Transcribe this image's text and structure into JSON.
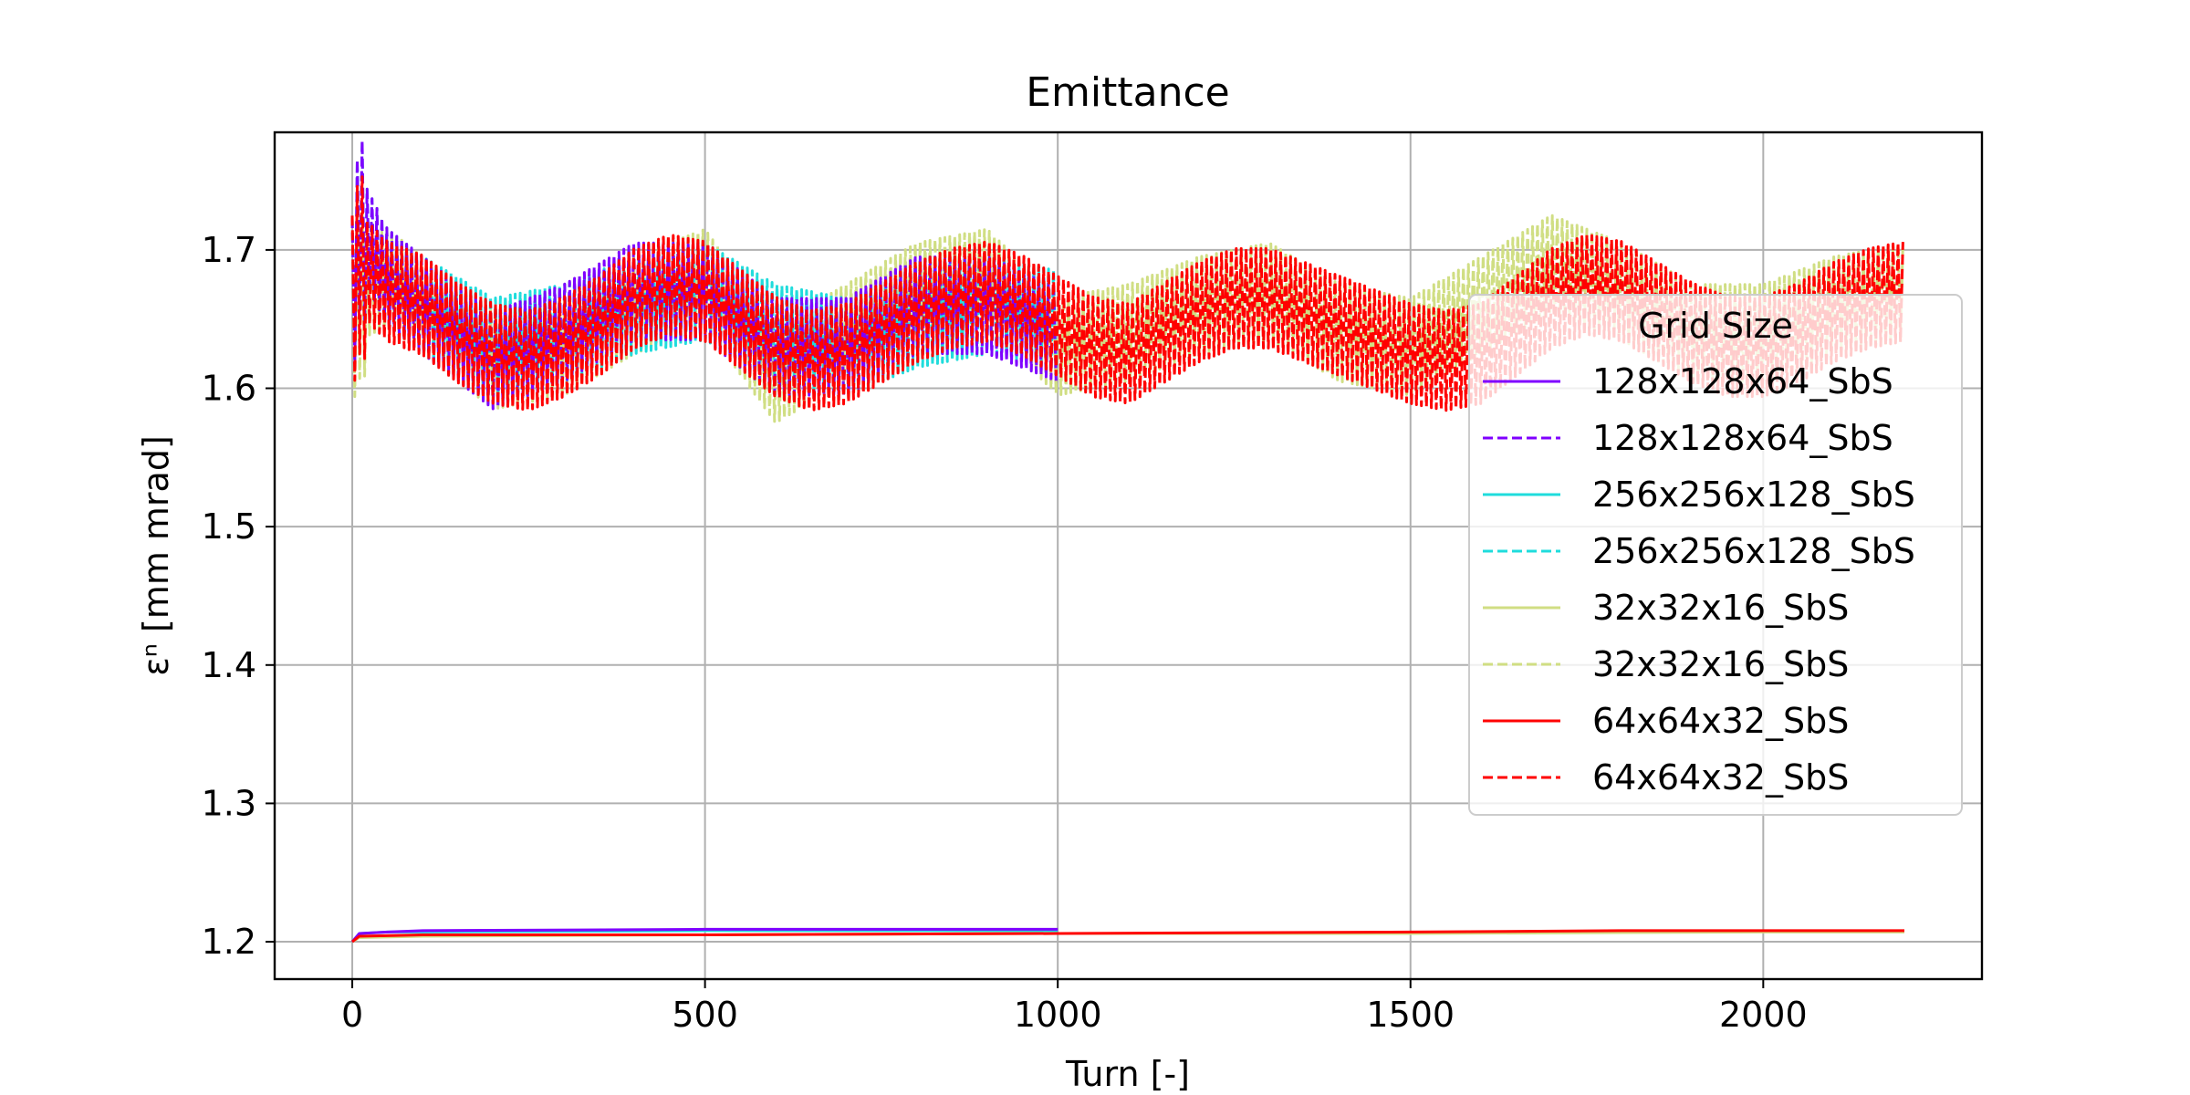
{
  "chart_data": {
    "type": "line",
    "title": "Emittance",
    "xlabel": "Turn [-]",
    "ylabel": "εⁿ [mm mrad]",
    "xlim": [
      -110,
      2310
    ],
    "ylim": [
      1.173,
      1.785
    ],
    "xticks": [
      0,
      500,
      1000,
      1500,
      2000
    ],
    "yticks": [
      1.2,
      1.3,
      1.4,
      1.5,
      1.6,
      1.7
    ],
    "grid": true,
    "legend": {
      "title": "Grid Size",
      "placement": "right"
    },
    "series": [
      {
        "name": "128x128x64_SbS",
        "color": "#7f00ff",
        "dash": "solid",
        "x": [
          0,
          10,
          50,
          100,
          500,
          1000
        ],
        "y": [
          1.2,
          1.206,
          1.207,
          1.208,
          1.209,
          1.209
        ]
      },
      {
        "name": "128x128x64_SbS",
        "color": "#7f00ff",
        "dash": "dashed",
        "oscillating": true,
        "x": [
          0,
          10,
          50,
          100,
          200,
          300,
          400,
          500,
          600,
          700,
          800,
          900,
          1000
        ],
        "y": [
          1.66,
          1.72,
          1.68,
          1.66,
          1.62,
          1.64,
          1.67,
          1.67,
          1.63,
          1.63,
          1.66,
          1.66,
          1.64
        ],
        "amplitude": 0.035
      },
      {
        "name": "256x256x128_SbS",
        "color": "#1fdcdc",
        "dash": "solid",
        "x": [
          0,
          10,
          50,
          100,
          500,
          1000
        ],
        "y": [
          1.2,
          1.206,
          1.207,
          1.207,
          1.208,
          1.208
        ]
      },
      {
        "name": "256x256x128_SbS",
        "color": "#1fdcdc",
        "dash": "dashed",
        "oscillating": true,
        "x": [
          0,
          10,
          50,
          100,
          200,
          300,
          400,
          500,
          600,
          700,
          800,
          900,
          1000
        ],
        "y": [
          1.66,
          1.72,
          1.68,
          1.66,
          1.63,
          1.64,
          1.66,
          1.67,
          1.64,
          1.63,
          1.65,
          1.66,
          1.65
        ],
        "amplitude": 0.035
      },
      {
        "name": "32x32x16_SbS",
        "color": "#d0de83",
        "dash": "solid",
        "x": [
          0,
          10,
          100,
          500,
          1000,
          1500,
          2000,
          2200
        ],
        "y": [
          1.2,
          1.203,
          1.204,
          1.205,
          1.206,
          1.206,
          1.207,
          1.207
        ]
      },
      {
        "name": "32x32x16_SbS",
        "color": "#d0de83",
        "dash": "dashed",
        "oscillating": true,
        "x": [
          0,
          10,
          50,
          100,
          200,
          300,
          400,
          500,
          600,
          700,
          800,
          900,
          1000,
          1100,
          1200,
          1300,
          1400,
          1500,
          1600,
          1700,
          1800,
          1900,
          2000,
          2100,
          2200
        ],
        "y": [
          1.65,
          1.67,
          1.68,
          1.66,
          1.62,
          1.63,
          1.66,
          1.68,
          1.61,
          1.64,
          1.67,
          1.68,
          1.63,
          1.64,
          1.66,
          1.67,
          1.64,
          1.63,
          1.66,
          1.69,
          1.67,
          1.64,
          1.64,
          1.66,
          1.67
        ],
        "amplitude": 0.035
      },
      {
        "name": "64x64x32_SbS",
        "color": "#ff0000",
        "dash": "solid",
        "x": [
          0,
          10,
          100,
          500,
          1000,
          1500,
          1800,
          2200
        ],
        "y": [
          1.2,
          1.204,
          1.205,
          1.205,
          1.206,
          1.207,
          1.208,
          1.208
        ]
      },
      {
        "name": "64x64x32_SbS",
        "color": "#ff0000",
        "dash": "dashed",
        "oscillating": true,
        "x": [
          0,
          10,
          50,
          100,
          150,
          200,
          250,
          300,
          350,
          400,
          450,
          500,
          550,
          600,
          650,
          700,
          750,
          800,
          850,
          900,
          950,
          1000,
          1050,
          1100,
          1150,
          1200,
          1250,
          1300,
          1350,
          1400,
          1450,
          1500,
          1550,
          1600,
          1650,
          1700,
          1750,
          1800,
          1850,
          1900,
          1950,
          2000,
          2050,
          2100,
          2150,
          2200
        ],
        "y": [
          1.66,
          1.69,
          1.67,
          1.66,
          1.64,
          1.625,
          1.62,
          1.63,
          1.645,
          1.665,
          1.675,
          1.67,
          1.65,
          1.63,
          1.62,
          1.625,
          1.64,
          1.655,
          1.665,
          1.67,
          1.66,
          1.645,
          1.63,
          1.625,
          1.64,
          1.655,
          1.665,
          1.665,
          1.655,
          1.645,
          1.635,
          1.625,
          1.62,
          1.625,
          1.645,
          1.665,
          1.675,
          1.67,
          1.655,
          1.64,
          1.63,
          1.63,
          1.64,
          1.655,
          1.665,
          1.67
        ],
        "amplitude": 0.036
      }
    ]
  }
}
